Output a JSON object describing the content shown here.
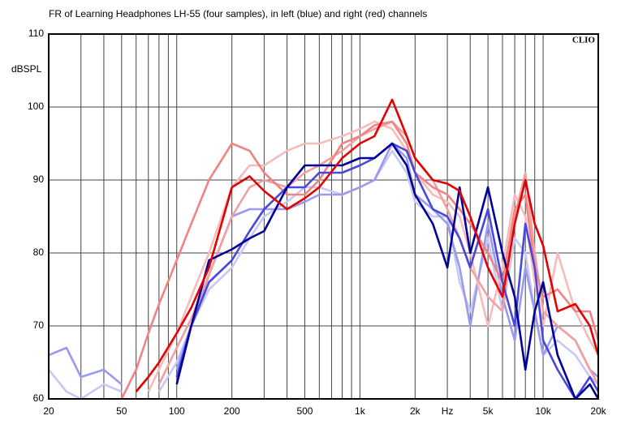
{
  "chart_data": {
    "type": "line",
    "title": "FR of Learning Headphones LH-55 (four samples), in left (blue) and right (red) channels",
    "y_label": "dBSPL",
    "annotation": "CLIO",
    "x_scale": "log",
    "grid": true,
    "xlim": [
      20,
      20000
    ],
    "ylim": [
      60,
      110
    ],
    "xticks": [
      20,
      50,
      100,
      200,
      500,
      {
        "value": 1000,
        "label": "1k"
      },
      {
        "value": 2000,
        "label": "2k"
      },
      {
        "value": 3000,
        "label": "Hz"
      },
      {
        "value": 5000,
        "label": "5k"
      },
      {
        "value": 10000,
        "label": "10k"
      },
      {
        "value": 20000,
        "label": "20k"
      }
    ],
    "x_minor_grid": [
      30,
      40,
      60,
      70,
      80,
      90,
      300,
      400,
      600,
      700,
      800,
      900,
      4000,
      6000,
      7000,
      8000,
      9000
    ],
    "yticks": [
      60,
      70,
      80,
      90,
      100,
      110
    ],
    "x": [
      20,
      25,
      30,
      40,
      50,
      60,
      70,
      80,
      100,
      120,
      150,
      200,
      250,
      300,
      400,
      500,
      600,
      800,
      1000,
      1200,
      1500,
      1800,
      2000,
      2500,
      3000,
      3500,
      4000,
      5000,
      6000,
      7000,
      8000,
      9000,
      10000,
      12000,
      15000,
      18000,
      20000
    ],
    "series": [
      {
        "color": "#c8c8f4",
        "values": [
          64,
          61,
          60,
          62,
          61,
          null,
          null,
          61,
          65,
          70,
          75,
          78,
          82,
          85,
          87,
          89,
          89,
          88,
          89,
          90,
          94,
          91,
          87,
          85,
          85,
          76,
          72,
          82,
          72,
          82,
          80,
          72,
          66,
          68,
          66,
          63,
          62
        ]
      },
      {
        "color": "#9a9af0",
        "values": [
          66,
          67,
          63,
          64,
          62,
          null,
          null,
          null,
          64,
          70,
          77,
          85,
          86,
          86,
          86,
          87,
          88,
          88,
          89,
          90,
          95,
          93,
          88,
          86,
          84,
          78,
          70,
          84,
          74,
          68,
          78,
          72,
          66,
          70,
          68,
          64,
          63
        ]
      },
      {
        "color": "#f6bcbc",
        "values": [
          null,
          null,
          null,
          null,
          null,
          null,
          61,
          64,
          69,
          74,
          80,
          89,
          92,
          92,
          94,
          95,
          95,
          96,
          97,
          98,
          97,
          94,
          91,
          88,
          87,
          85,
          80,
          70,
          78,
          88,
          85,
          76,
          70,
          80,
          72,
          68,
          66
        ]
      },
      {
        "color": "#f2a0a0",
        "values": [
          null,
          null,
          null,
          null,
          null,
          null,
          null,
          62,
          67,
          71,
          77,
          85,
          89,
          90,
          89,
          91,
          92,
          94,
          96,
          97,
          98,
          96,
          93,
          90,
          86,
          82,
          78,
          74,
          72,
          85,
          91,
          80,
          72,
          70,
          68,
          64,
          62
        ]
      },
      {
        "color": "#f08484",
        "values": [
          null,
          null,
          null,
          null,
          60,
          64,
          69,
          73,
          79,
          84,
          90,
          95,
          94,
          91,
          88,
          88,
          90,
          95,
          96,
          97.5,
          98,
          95,
          91,
          89,
          88,
          86,
          84,
          80,
          76,
          86,
          88,
          78,
          74,
          75,
          72,
          72,
          68
        ]
      },
      {
        "color": "#4848e0",
        "values": [
          null,
          null,
          null,
          null,
          null,
          null,
          null,
          null,
          63,
          70,
          76,
          79,
          83,
          86,
          89,
          89,
          91,
          91,
          92,
          93,
          95,
          94,
          91,
          86,
          85,
          82,
          78,
          86,
          76,
          70,
          84,
          78,
          68,
          64,
          60,
          63,
          61
        ]
      },
      {
        "color": "#000096",
        "values": [
          null,
          null,
          null,
          null,
          null,
          null,
          null,
          null,
          62,
          70,
          79,
          80.5,
          82,
          83,
          89,
          92,
          92,
          92,
          93,
          93,
          95,
          92,
          88,
          84,
          78,
          89,
          80,
          89,
          80,
          74,
          64,
          72,
          76,
          66,
          60,
          62,
          60
        ]
      },
      {
        "color": "#e00000",
        "values": [
          null,
          null,
          null,
          null,
          null,
          61,
          63,
          65,
          69,
          72.5,
          78,
          89,
          90.5,
          88.5,
          86,
          87.5,
          89,
          93,
          95,
          96,
          101,
          96,
          93,
          90,
          89.5,
          88.5,
          85,
          78,
          74,
          84,
          90,
          84,
          81,
          72,
          73,
          70,
          66
        ]
      }
    ]
  }
}
